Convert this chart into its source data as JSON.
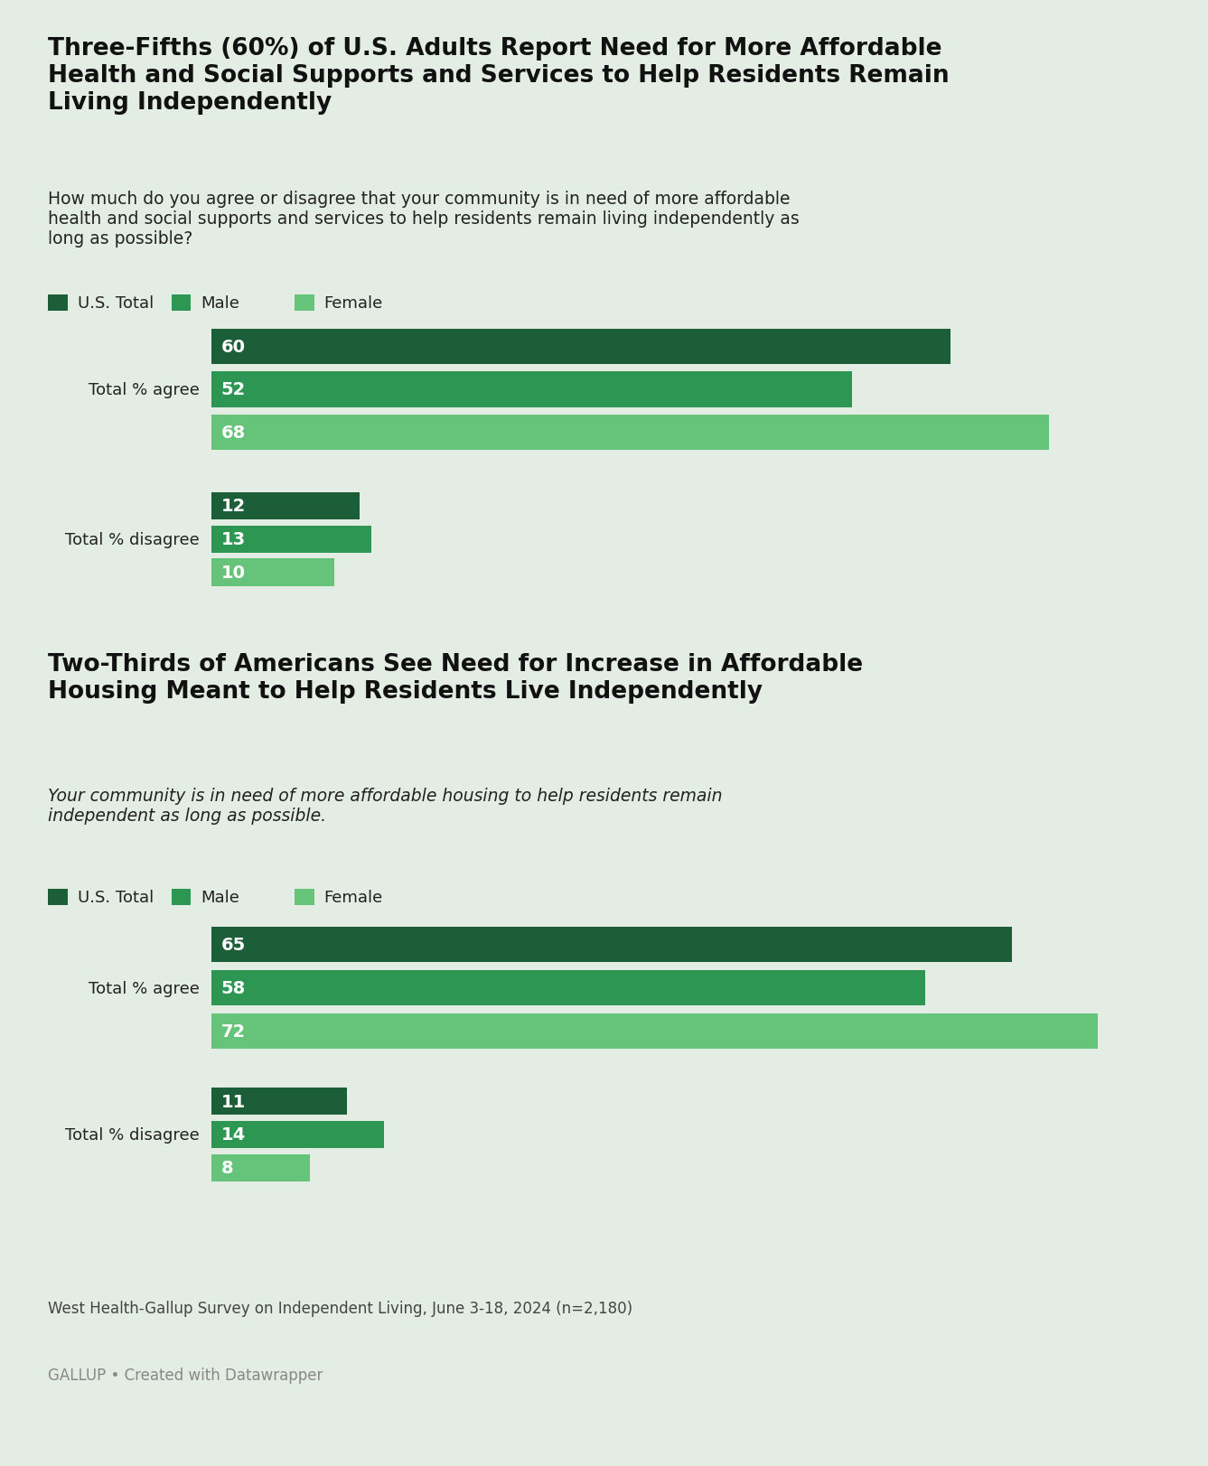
{
  "bg_color": "#e4ede4",
  "title1": "Three-Fifths (60%) of U.S. Adults Report Need for More Affordable\nHealth and Social Supports and Services to Help Residents Remain\nLiving Independently",
  "subtitle1": "How much do you agree or disagree that your community is in need of more affordable\nhealth and social supports and services to help residents remain living independently as\nlong as possible?",
  "title2": "Two-Thirds of Americans See Need for Increase in Affordable\nHousing Meant to Help Residents Live Independently",
  "subtitle2": "Your community is in need of more affordable housing to help residents remain\nindependent as long as possible.",
  "legend_labels": [
    "U.S. Total",
    "Male",
    "Female"
  ],
  "colors": [
    "#1b5e38",
    "#2d9653",
    "#66c47a"
  ],
  "chart1": {
    "agree": [
      60,
      52,
      68
    ],
    "disagree": [
      12,
      13,
      10
    ]
  },
  "chart2": {
    "agree": [
      65,
      58,
      72
    ],
    "disagree": [
      11,
      14,
      8
    ]
  },
  "max_val": 78,
  "footnote": "West Health-Gallup Survey on Independent Living, June 3-18, 2024 (n=2,180)",
  "source": "GALLUP • Created with Datawrapper",
  "label_fontsize": 14,
  "category_fontsize": 13,
  "title_fontsize": 19,
  "subtitle_fontsize": 13.5,
  "legend_fontsize": 13,
  "footnote_fontsize": 12,
  "source_fontsize": 12
}
